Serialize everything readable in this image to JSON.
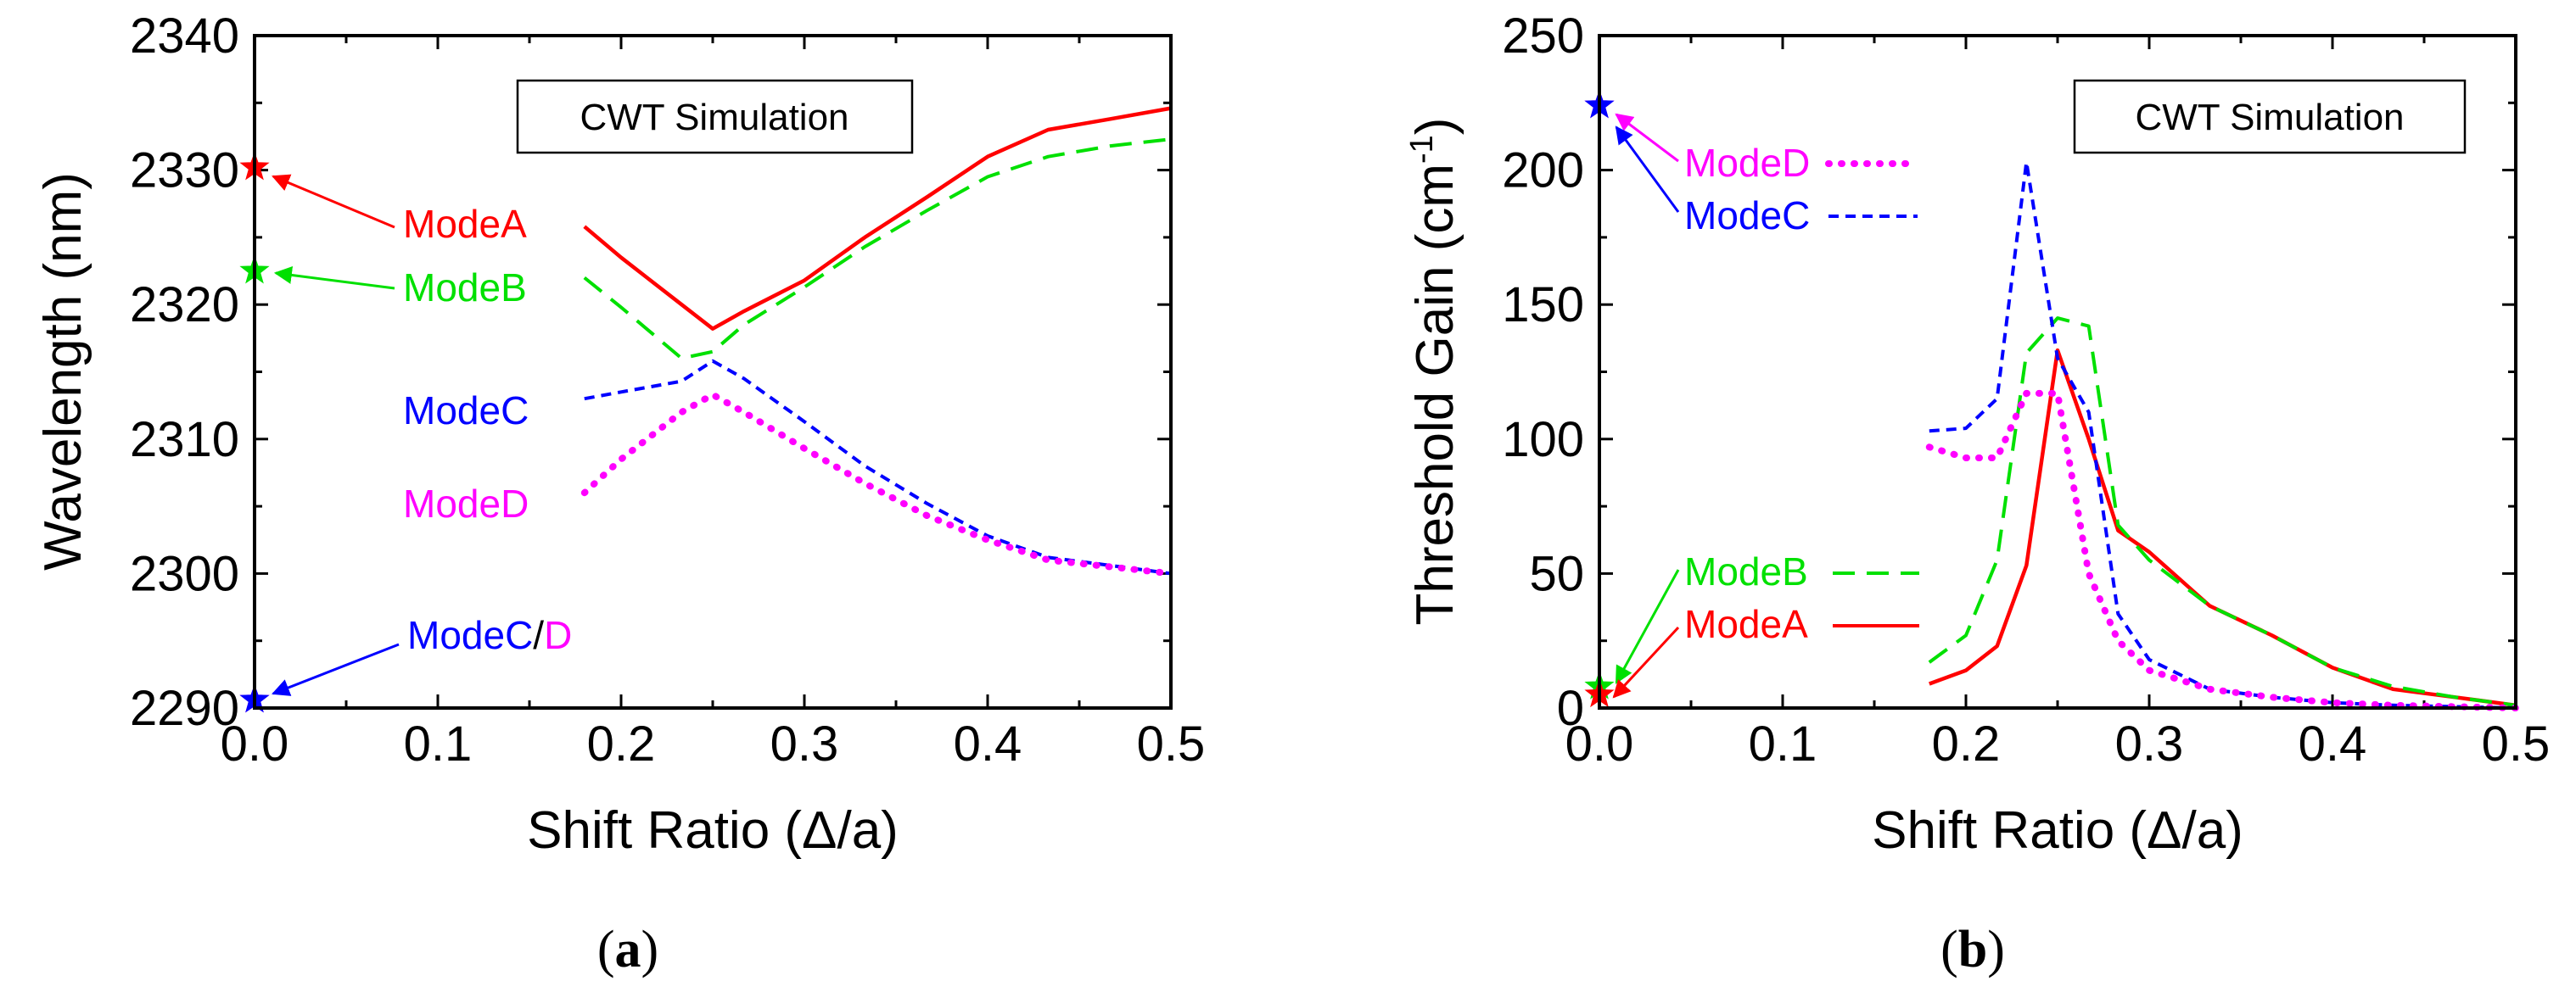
{
  "colors": {
    "modeA": "#ff0000",
    "modeB": "#00e000",
    "modeC": "#0000ff",
    "modeD": "#ff00ff",
    "axis": "#000000"
  },
  "chart_data": [
    {
      "type": "line",
      "panel_label": "a",
      "xlabel": "Shift Ratio (Δ/a)",
      "ylabel": "Wavelength (nm)",
      "xlim": [
        0.0,
        0.5
      ],
      "ylim": [
        2290,
        2340
      ],
      "xticks": [
        "0.0",
        "0.1",
        "0.2",
        "0.3",
        "0.4",
        "0.5"
      ],
      "yticks": [
        "2290",
        "2300",
        "2310",
        "2320",
        "2330",
        "2340"
      ],
      "annotation_box": "CWT Simulation",
      "series": [
        {
          "name": "ModeA",
          "style": "solid",
          "color_key": "modeA",
          "x": [
            0.18,
            0.2,
            0.233,
            0.25,
            0.267,
            0.3,
            0.333,
            0.367,
            0.4,
            0.433,
            0.467,
            0.5
          ],
          "y": [
            2325.8,
            2323.5,
            2320.0,
            2318.2,
            2319.5,
            2321.8,
            2325.0,
            2328.0,
            2331.0,
            2333.0,
            2333.8,
            2334.6
          ]
        },
        {
          "name": "ModeB",
          "style": "dashed",
          "color_key": "modeB",
          "x": [
            0.18,
            0.2,
            0.233,
            0.25,
            0.267,
            0.3,
            0.333,
            0.367,
            0.4,
            0.433,
            0.467,
            0.5
          ],
          "y": [
            2322.0,
            2319.8,
            2316.0,
            2316.5,
            2318.5,
            2321.3,
            2324.3,
            2327.0,
            2329.5,
            2331.0,
            2331.8,
            2332.3
          ]
        },
        {
          "name": "ModeC",
          "style": "short-dash",
          "color_key": "modeC",
          "x": [
            0.18,
            0.2,
            0.233,
            0.25,
            0.267,
            0.3,
            0.333,
            0.367,
            0.4,
            0.433,
            0.467,
            0.5
          ],
          "y": [
            2313.0,
            2313.5,
            2314.3,
            2315.8,
            2314.5,
            2311.3,
            2308.0,
            2305.2,
            2302.8,
            2301.2,
            2300.6,
            2300.0
          ]
        },
        {
          "name": "ModeD",
          "style": "dotted",
          "color_key": "modeD",
          "x": [
            0.18,
            0.2,
            0.233,
            0.25,
            0.267,
            0.3,
            0.333,
            0.367,
            0.4,
            0.433,
            0.467,
            0.5
          ],
          "y": [
            2306.0,
            2308.5,
            2312.0,
            2313.3,
            2312.0,
            2309.3,
            2306.7,
            2304.3,
            2302.5,
            2301.0,
            2300.5,
            2300.0
          ]
        }
      ],
      "markers": [
        {
          "x": 0.0,
          "y": 2330.2,
          "color_key": "modeA",
          "label": "ModeA"
        },
        {
          "x": 0.0,
          "y": 2322.5,
          "color_key": "modeB",
          "label": "ModeB"
        },
        {
          "x": 0.0,
          "y": 2290.6,
          "color_key": "modeD",
          "label": ""
        },
        {
          "x": 0.0,
          "y": 2290.6,
          "color_key": "modeC",
          "label": ""
        }
      ],
      "labels": {
        "modeA": "ModeA",
        "modeB": "ModeB",
        "modeC": "ModeC",
        "modeD": "ModeD",
        "modeCD_c": "ModeC",
        "modeCD_slash": "/",
        "modeCD_d": "D"
      }
    },
    {
      "type": "line",
      "panel_label": "b",
      "xlabel": "Shift Ratio (Δ/a)",
      "ylabel_main": "Threshold Gain (cm",
      "ylabel_sup": "-1",
      "ylabel_end": ")",
      "xlim": [
        0.0,
        0.5
      ],
      "ylim": [
        0,
        250
      ],
      "xticks": [
        "0.0",
        "0.1",
        "0.2",
        "0.3",
        "0.4",
        "0.5"
      ],
      "yticks": [
        "0",
        "50",
        "100",
        "150",
        "200",
        "250"
      ],
      "annotation_box": "CWT Simulation",
      "series": [
        {
          "name": "ModeA",
          "style": "solid",
          "color_key": "modeA",
          "x": [
            0.18,
            0.2,
            0.217,
            0.233,
            0.25,
            0.267,
            0.283,
            0.3,
            0.333,
            0.367,
            0.4,
            0.433,
            0.467,
            0.5
          ],
          "y": [
            9,
            14,
            23,
            53,
            133,
            100,
            66,
            58,
            38,
            27,
            15,
            7,
            4,
            1
          ]
        },
        {
          "name": "ModeB",
          "style": "dashed",
          "color_key": "modeB",
          "x": [
            0.18,
            0.2,
            0.217,
            0.233,
            0.25,
            0.267,
            0.283,
            0.3,
            0.333,
            0.367,
            0.4,
            0.433,
            0.467,
            0.5
          ],
          "y": [
            17,
            27,
            55,
            132,
            145,
            142,
            68,
            55,
            38,
            27,
            15,
            8,
            4,
            1
          ]
        },
        {
          "name": "ModeC",
          "style": "short-dash",
          "color_key": "modeC",
          "x": [
            0.18,
            0.2,
            0.217,
            0.233,
            0.25,
            0.267,
            0.283,
            0.3,
            0.333,
            0.367,
            0.4,
            0.433,
            0.467,
            0.5
          ],
          "y": [
            103,
            104,
            115,
            203,
            130,
            110,
            35,
            18,
            7,
            4,
            2,
            1,
            0.5,
            0
          ]
        },
        {
          "name": "ModeD",
          "style": "dotted",
          "color_key": "modeD",
          "x": [
            0.18,
            0.2,
            0.217,
            0.233,
            0.25,
            0.267,
            0.283,
            0.3,
            0.333,
            0.367,
            0.4,
            0.433,
            0.467,
            0.5
          ],
          "y": [
            97,
            93,
            93,
            117,
            117,
            50,
            25,
            14,
            7,
            4,
            2,
            1,
            0.5,
            0
          ]
        }
      ],
      "markers": [
        {
          "x": 0.0,
          "y": 224,
          "color_key": "modeD",
          "label": "ModeD"
        },
        {
          "x": 0.0,
          "y": 224,
          "color_key": "modeC",
          "label": "ModeC"
        },
        {
          "x": 0.0,
          "y": 8,
          "color_key": "modeB",
          "label": "ModeB"
        },
        {
          "x": 0.0,
          "y": 5,
          "color_key": "modeA",
          "label": "ModeA"
        }
      ],
      "labels": {
        "modeD": "ModeD",
        "modeC": "ModeC",
        "modeB": "ModeB",
        "modeA": "ModeA"
      }
    }
  ]
}
